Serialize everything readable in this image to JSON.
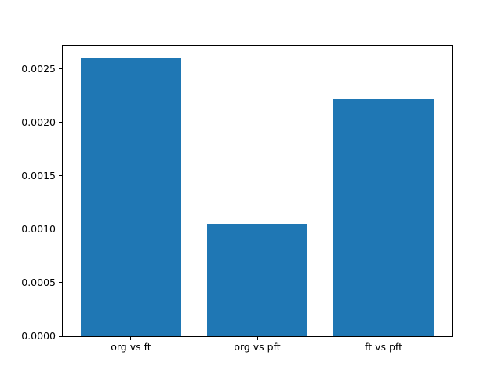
{
  "chart_data": {
    "type": "bar",
    "title": "",
    "xlabel": "",
    "ylabel": "",
    "categories": [
      "org vs ft",
      "org vs pft",
      "ft vs pft"
    ],
    "values": [
      0.0026,
      0.00105,
      0.00222
    ],
    "bar_color": "#1f77b4",
    "bar_width": 0.8,
    "xlim": [
      -0.54,
      2.54
    ],
    "ylim": [
      0,
      0.002717
    ],
    "yticks": [
      {
        "value": 0.0,
        "label": "0.0000"
      },
      {
        "value": 0.0005,
        "label": "0.0005"
      },
      {
        "value": 0.001,
        "label": "0.0010"
      },
      {
        "value": 0.0015,
        "label": "0.0015"
      },
      {
        "value": 0.002,
        "label": "0.0020"
      },
      {
        "value": 0.0025,
        "label": "0.0025"
      }
    ],
    "grid": false,
    "legend": null,
    "background": "#ffffff",
    "spine_color": "#000000"
  }
}
